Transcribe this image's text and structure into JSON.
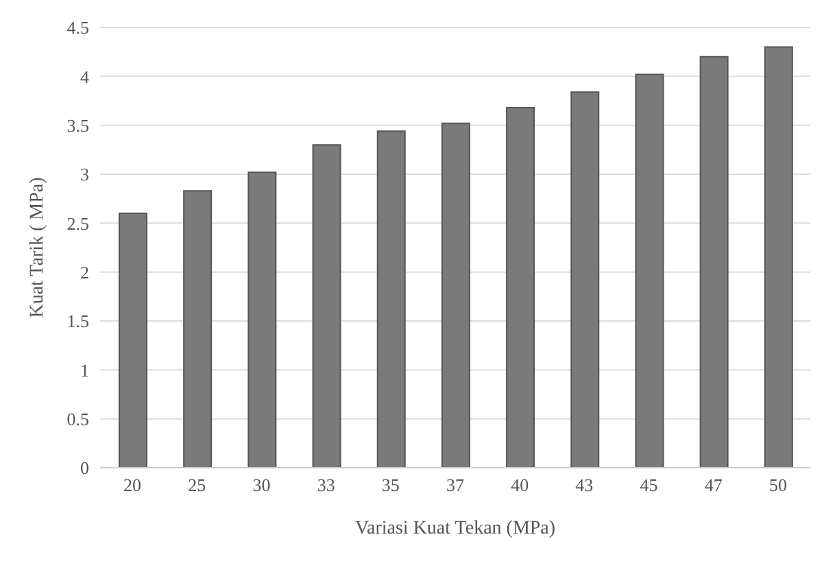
{
  "chart_data": {
    "type": "bar",
    "xlabel": "Variasi Kuat Tekan (MPa)",
    "ylabel": "Kuat Tarik ( MPa)",
    "categories": [
      "20",
      "25",
      "30",
      "33",
      "35",
      "37",
      "40",
      "43",
      "45",
      "47",
      "50"
    ],
    "values": [
      2.6,
      2.83,
      3.02,
      3.3,
      3.44,
      3.52,
      3.68,
      3.84,
      4.02,
      4.2,
      4.3
    ],
    "color": "#7a7a7a",
    "ylim": [
      0,
      4.5
    ],
    "yticks": [
      0,
      0.5,
      1,
      1.5,
      2,
      2.5,
      3,
      3.5,
      4,
      4.5
    ],
    "grid": "y"
  }
}
